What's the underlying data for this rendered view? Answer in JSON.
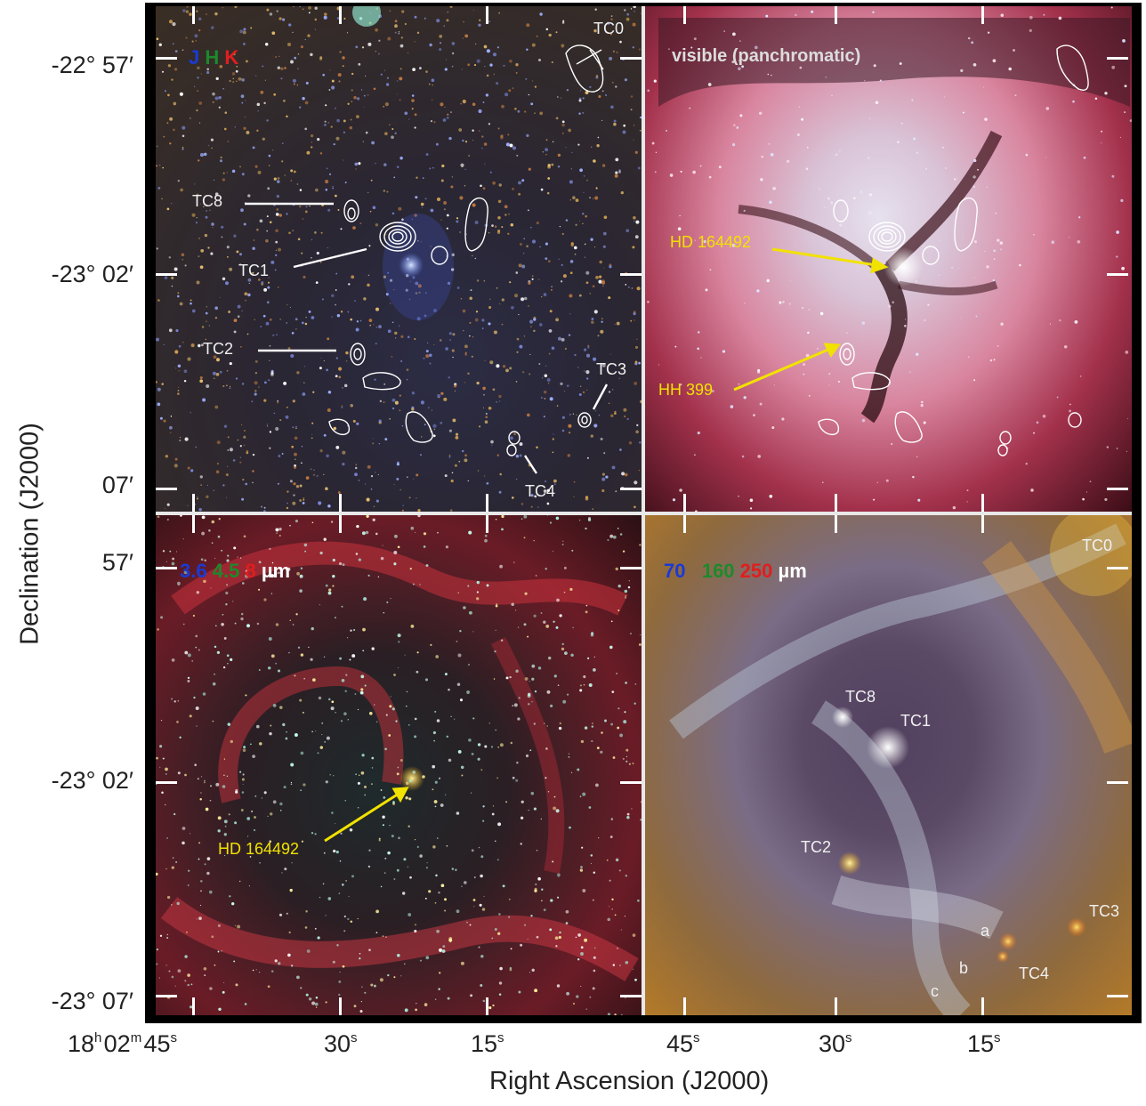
{
  "axes": {
    "x_title": "Right Ascension (J2000)",
    "y_title": "Declination (J2000)",
    "dec_ticks": [
      {
        "text": "-22° 57′"
      },
      {
        "text": "-23° 02′"
      },
      {
        "text": "07′"
      },
      {
        "text": "57′"
      },
      {
        "text": "-23° 02′"
      },
      {
        "text": "-23° 07′"
      }
    ],
    "ra_ticks": {
      "first_prefix_h": "18",
      "first_prefix_m": "02",
      "labels": [
        "45",
        "30",
        "15",
        "45",
        "30",
        "15"
      ],
      "units": {
        "h": "h",
        "m": "m",
        "s": "s"
      }
    }
  },
  "panels": {
    "top_left": {
      "bands": {
        "j": "J",
        "h": "H",
        "k": "K"
      },
      "sources": {
        "tc0": "TC0",
        "tc8": "TC8",
        "tc1": "TC1",
        "tc2": "TC2",
        "tc3": "TC3",
        "tc4": "TC4"
      }
    },
    "top_right": {
      "band_label": "visible (panchromatic)",
      "annotations": {
        "hd": "HD 164492",
        "hh": "HH 399"
      }
    },
    "bottom_left": {
      "bands": {
        "b1": "3.6",
        "b2": "4.5",
        "b3": "8",
        "unit": "µm"
      },
      "annotations": {
        "hd": "HD 164492"
      }
    },
    "bottom_right": {
      "bands": {
        "b1": "70",
        "b2": "160",
        "b3": "250",
        "unit": "µm"
      },
      "sources": {
        "tc0": "TC0",
        "tc8": "TC8",
        "tc1": "TC1",
        "tc2": "TC2",
        "tc3": "TC3",
        "tc4": "TC4",
        "a": "a",
        "b": "b",
        "c": "c"
      }
    }
  },
  "colors": {
    "annotation_yellow": "#f2e200",
    "band_blue": "#1a3ad6",
    "band_green": "#1c8a2b",
    "band_red": "#e01e1e"
  }
}
